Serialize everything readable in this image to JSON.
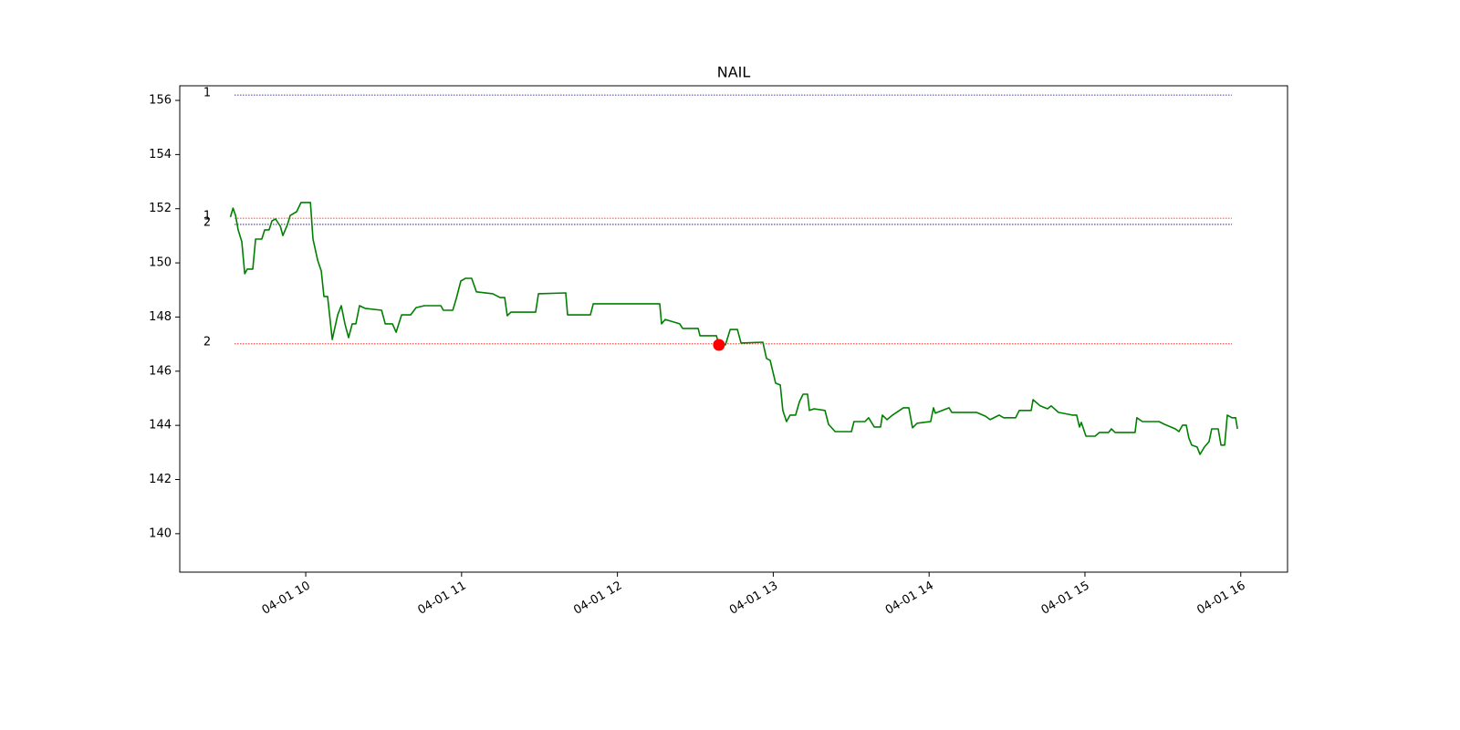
{
  "chart_data": {
    "type": "line",
    "title": "NAIL",
    "color": "#008000",
    "x": [
      571,
      572,
      573,
      574,
      575.4,
      576.5,
      577.5,
      579.6,
      580.7,
      583.1,
      584.2,
      585.9,
      587.0,
      588.4,
      590.2,
      591.2,
      593.0,
      594.0,
      596.5,
      598.2,
      601.8,
      602.8,
      604.6,
      606.0,
      607.0,
      608.4,
      610.2,
      612.3,
      613.7,
      615.1,
      616.5,
      617.9,
      619.3,
      620.7,
      622.8,
      629.2,
      630.6,
      633.4,
      634.8,
      636.9,
      640.4,
      642.5,
      645.7,
      652.0,
      653.0,
      656.6,
      658.0,
      659.7,
      661.5,
      663.9,
      665.7,
      672.0,
      674.8,
      676.6,
      677.6,
      679.0,
      688.5,
      689.6,
      700.1,
      700.8,
      709.6,
      710.7,
      736.3,
      737.0,
      738.4,
      744.0,
      745.1,
      751.1,
      751.8,
      758.1,
      759.1,
      761.6,
      763.4,
      766.2,
      767.6,
      776.0,
      777.4,
      778.8,
      780.9,
      782.7,
      783.7,
      785.1,
      786.5,
      788.6,
      790.1,
      791.5,
      793.2,
      793.9,
      795.7,
      799.9,
      801.3,
      803.8,
      810.1,
      811.1,
      815.3,
      816.7,
      818.9,
      821.3,
      822.0,
      823.8,
      825.9,
      830.1,
      832.2,
      833.6,
      835.4,
      840.6,
      841.7,
      842.4,
      847.7,
      848.7,
      858.2,
      861.7,
      863.5,
      867.0,
      868.7,
      873.3,
      874.7,
      879.3,
      880.0,
      882.8,
      885.6,
      887.0,
      889.8,
      895.1,
      896.8,
      897.9,
      898.6,
      900.4,
      903.9,
      905.6,
      909.1,
      910.2,
      911.6,
      919.3,
      920.0,
      922.1,
      928.5,
      930.6,
      934.8,
      936.2,
      937.6,
      939.0,
      940.0,
      941.1,
      943.2,
      944.3,
      946.0,
      947.8,
      948.8,
      951.3,
      952.4,
      953.8,
      954.8,
      956.6,
      958.0,
      958.7
    ],
    "values": [
      151.69,
      152.02,
      151.75,
      151.22,
      150.78,
      149.6,
      149.77,
      149.77,
      150.88,
      150.88,
      151.22,
      151.22,
      151.55,
      151.62,
      151.35,
      151.01,
      151.42,
      151.75,
      151.89,
      152.23,
      152.23,
      150.88,
      150.1,
      149.7,
      148.76,
      148.76,
      147.17,
      148.08,
      148.42,
      147.75,
      147.24,
      147.75,
      147.75,
      148.42,
      148.32,
      148.25,
      147.75,
      147.75,
      147.44,
      148.08,
      148.08,
      148.35,
      148.42,
      148.42,
      148.25,
      148.25,
      148.69,
      149.33,
      149.43,
      149.43,
      148.93,
      148.86,
      148.72,
      148.72,
      148.05,
      148.18,
      148.18,
      148.86,
      148.89,
      148.08,
      148.08,
      148.49,
      148.49,
      147.75,
      147.91,
      147.75,
      147.58,
      147.58,
      147.31,
      147.31,
      146.97,
      146.97,
      147.54,
      147.54,
      147.04,
      147.07,
      146.47,
      146.4,
      145.56,
      145.49,
      144.55,
      144.14,
      144.38,
      144.38,
      144.88,
      145.15,
      145.15,
      144.55,
      144.61,
      144.55,
      144.04,
      143.77,
      143.77,
      144.14,
      144.14,
      144.28,
      143.94,
      143.94,
      144.38,
      144.21,
      144.38,
      144.65,
      144.65,
      143.91,
      144.08,
      144.14,
      144.65,
      144.45,
      144.65,
      144.48,
      144.48,
      144.34,
      144.21,
      144.38,
      144.28,
      144.28,
      144.55,
      144.55,
      144.95,
      144.72,
      144.61,
      144.72,
      144.48,
      144.38,
      144.38,
      143.94,
      144.11,
      143.6,
      143.6,
      143.74,
      143.74,
      143.87,
      143.74,
      143.74,
      144.28,
      144.14,
      144.14,
      144.04,
      143.87,
      143.77,
      144.01,
      144.01,
      143.54,
      143.27,
      143.2,
      142.93,
      143.2,
      143.4,
      143.87,
      143.87,
      143.27,
      143.27,
      144.38,
      144.28,
      144.28,
      143.87
    ],
    "levels": [
      {
        "label": "1",
        "value": 156.2,
        "color": "#00008b",
        "xmin": 572.6,
        "xmax": 956.6
      },
      {
        "label": "1",
        "value": 151.65,
        "color": "#ff0000",
        "xmin": 572.6,
        "xmax": 956.6
      },
      {
        "label": "2",
        "value": 151.42,
        "color": "#00008b",
        "xmin": 572.6,
        "xmax": 956.6
      },
      {
        "label": "2",
        "value": 147.01,
        "color": "#ff0000",
        "xmin": 572.6,
        "xmax": 956.6
      }
    ],
    "markers": [
      {
        "x": 759.1,
        "value": 146.97,
        "color": "#ff0000"
      }
    ],
    "xlim": [
      551.5,
      978.0
    ],
    "xticks": [
      {
        "value": 600,
        "label": "04-01 10"
      },
      {
        "value": 660,
        "label": "04-01 11"
      },
      {
        "value": 720,
        "label": "04-01 12"
      },
      {
        "value": 780,
        "label": "04-01 13"
      },
      {
        "value": 840,
        "label": "04-01 14"
      },
      {
        "value": 900,
        "label": "04-01 15"
      },
      {
        "value": 960,
        "label": "04-01 16"
      }
    ],
    "ylim": [
      138.58,
      156.54
    ],
    "yticks": [
      140,
      142,
      144,
      146,
      148,
      150,
      152,
      154,
      156
    ]
  }
}
